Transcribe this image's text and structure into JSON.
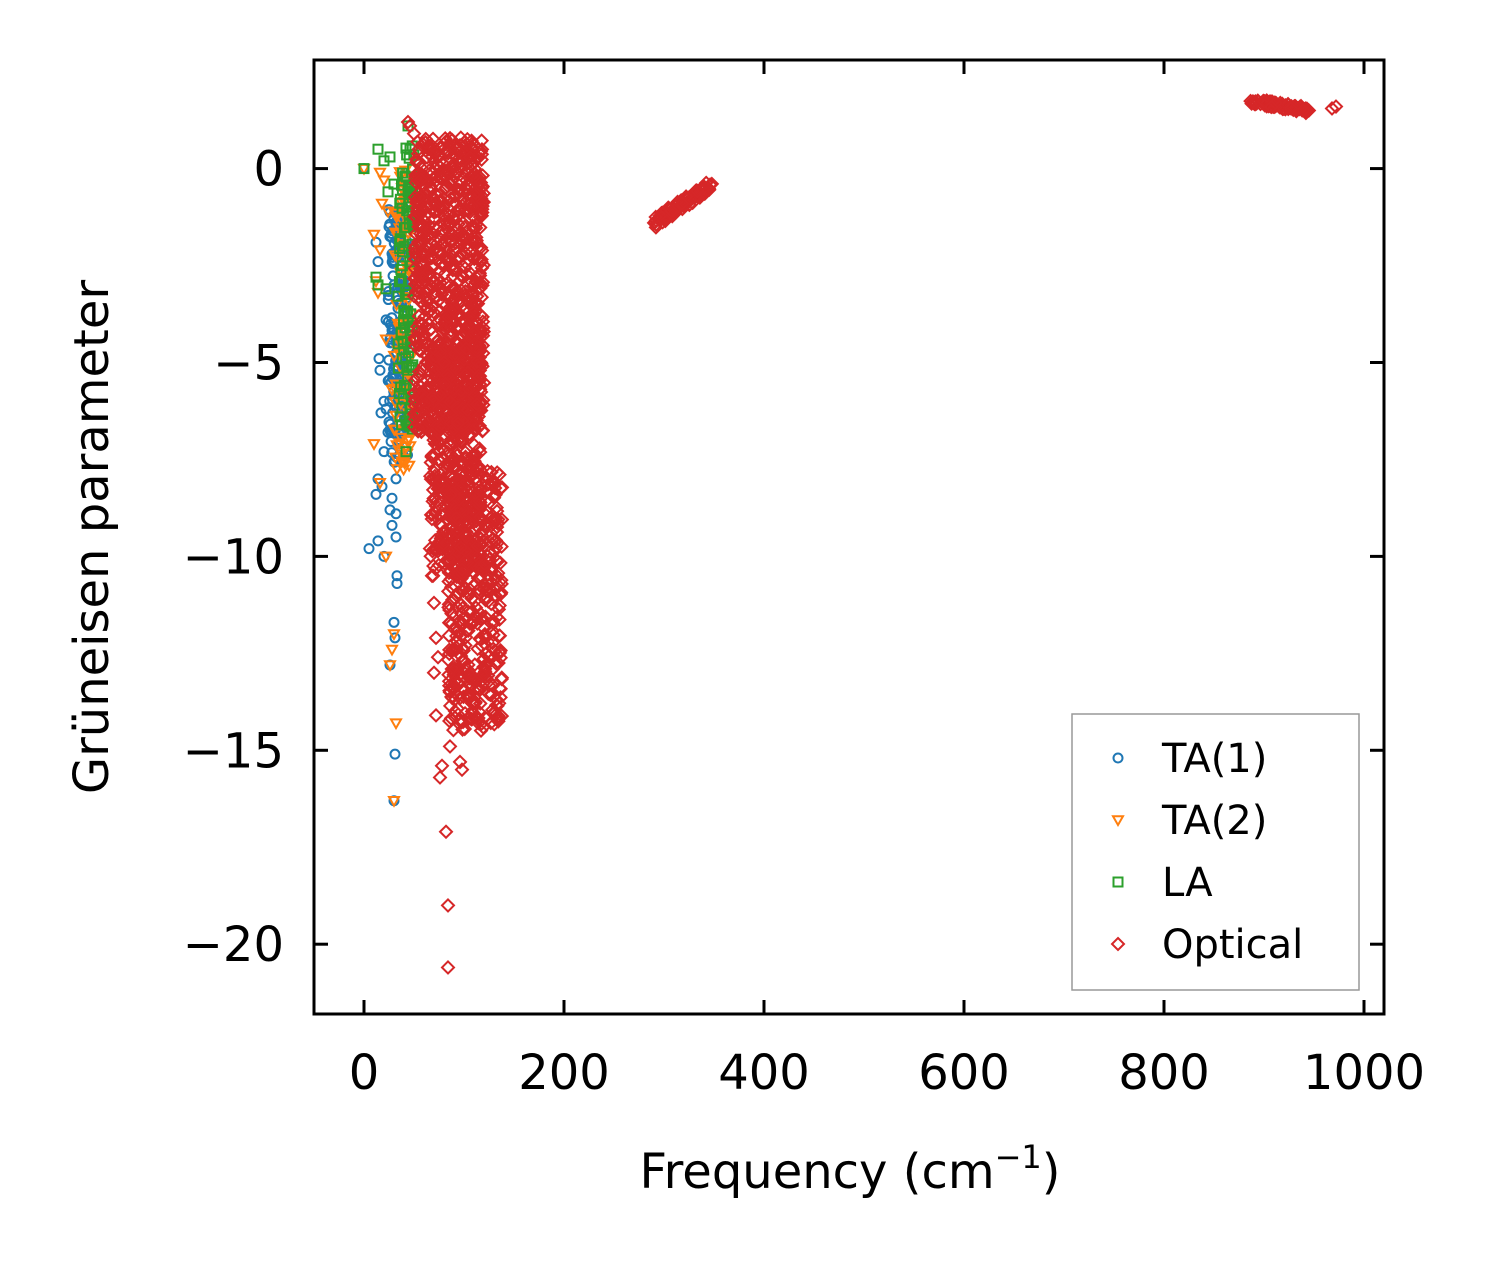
{
  "chart_data": {
    "type": "scatter",
    "title": "",
    "xlabel": "Frequency (cm",
    "xlabel_sup": "−1",
    "xlabel_close": ")",
    "ylabel": "Grüneisen parameter",
    "xlim": [
      -50,
      1020
    ],
    "ylim": [
      -21.8,
      2.8
    ],
    "xticks": [
      0,
      200,
      400,
      600,
      800,
      1000
    ],
    "xtick_labels": [
      "0",
      "200",
      "400",
      "600",
      "800",
      "1000"
    ],
    "yticks": [
      0,
      -5,
      -10,
      -15,
      -20
    ],
    "ytick_labels": [
      "0",
      "−5",
      "−10",
      "−15",
      "−20"
    ],
    "grid": false,
    "legend_position": "bottom-right",
    "series": [
      {
        "name": "TA(1)",
        "marker": "circle",
        "color": "#1f77b4",
        "points": [
          [
            0,
            0
          ],
          [
            12,
            -1.9
          ],
          [
            14,
            -2.4
          ],
          [
            15,
            -4.9
          ],
          [
            16,
            -5.2
          ],
          [
            17,
            -6.3
          ],
          [
            20,
            -6.0
          ],
          [
            22,
            -3.9
          ],
          [
            22,
            -6.2
          ],
          [
            24,
            -6.8
          ],
          [
            20,
            -7.3
          ],
          [
            12,
            -8.4
          ],
          [
            14,
            -8.0
          ],
          [
            18,
            -8.2
          ],
          [
            26,
            -8.8
          ],
          [
            28,
            -9.2
          ],
          [
            28,
            -8.5
          ],
          [
            32,
            -8.9
          ],
          [
            32,
            -9.5
          ],
          [
            5,
            -9.8
          ],
          [
            14,
            -9.6
          ],
          [
            20,
            -10.0
          ],
          [
            33,
            -10.5
          ],
          [
            33,
            -10.7
          ],
          [
            30,
            -11.7
          ],
          [
            31,
            -12.1
          ],
          [
            26,
            -12.8
          ],
          [
            31,
            -15.1
          ],
          [
            30,
            -16.3
          ],
          [
            25,
            -1.5
          ],
          [
            28,
            -2.2
          ],
          [
            30,
            -3.0
          ],
          [
            34,
            -3.6
          ],
          [
            26,
            -4.4
          ],
          [
            30,
            -5.3
          ],
          [
            36,
            -6.4
          ],
          [
            34,
            -7.1
          ],
          [
            38,
            -7.5
          ],
          [
            32,
            -8.0
          ]
        ],
        "band": {
          "x": [
            24,
            44
          ],
          "y": [
            -7.6,
            -1.0
          ],
          "count": 170
        }
      },
      {
        "name": "TA(2)",
        "marker": "triangle-down",
        "color": "#ff7f0e",
        "points": [
          [
            0,
            0
          ],
          [
            16,
            -0.1
          ],
          [
            20,
            -0.3
          ],
          [
            18,
            -0.9
          ],
          [
            24,
            -1.1
          ],
          [
            10,
            -1.7
          ],
          [
            16,
            -2.1
          ],
          [
            12,
            -2.9
          ],
          [
            14,
            -3.2
          ],
          [
            22,
            -4.4
          ],
          [
            28,
            -5.7
          ],
          [
            36,
            -6.6
          ],
          [
            10,
            -7.1
          ],
          [
            16,
            -8.1
          ],
          [
            22,
            -10.0
          ],
          [
            30,
            -12.0
          ],
          [
            28,
            -12.4
          ],
          [
            26,
            -12.8
          ],
          [
            32,
            -14.3
          ],
          [
            30,
            -16.3
          ],
          [
            38,
            -0.5
          ],
          [
            40,
            -1.2
          ],
          [
            44,
            -2.6
          ],
          [
            46,
            -4.9
          ]
        ],
        "band": {
          "x": [
            30,
            48
          ],
          "y": [
            -7.8,
            0.1
          ],
          "count": 90
        }
      },
      {
        "name": "LA",
        "marker": "square",
        "color": "#2ca02c",
        "points": [
          [
            0,
            0
          ],
          [
            14,
            0.5
          ],
          [
            20,
            0.2
          ],
          [
            24,
            -0.6
          ],
          [
            26,
            0.3
          ],
          [
            30,
            -0.4
          ],
          [
            12,
            -2.8
          ],
          [
            14,
            -3.0
          ],
          [
            22,
            -3.1
          ],
          [
            44,
            1.1
          ],
          [
            46,
            0.5
          ],
          [
            36,
            -6.4
          ],
          [
            44,
            -6.6
          ],
          [
            46,
            -6.2
          ],
          [
            42,
            -7.3
          ],
          [
            46,
            -4.6
          ],
          [
            40,
            -2.0
          ]
        ],
        "band": {
          "x": [
            34,
            50
          ],
          "y": [
            -6.8,
            0.6
          ],
          "count": 100
        }
      },
      {
        "name": "Optical",
        "marker": "diamond",
        "color": "#d62728",
        "points": [
          [
            44,
            1.2
          ],
          [
            46,
            1.1
          ],
          [
            50,
            0.9
          ],
          [
            82,
            0.7
          ],
          [
            90,
            0.6
          ],
          [
            96,
            0.6
          ],
          [
            112,
            -0.2
          ],
          [
            68,
            -7.4
          ],
          [
            70,
            -8.0
          ],
          [
            72,
            -8.7
          ],
          [
            66,
            -9.8
          ],
          [
            68,
            -10.5
          ],
          [
            70,
            -11.2
          ],
          [
            72,
            -12.1
          ],
          [
            74,
            -12.6
          ],
          [
            70,
            -13.0
          ],
          [
            72,
            -14.1
          ],
          [
            86,
            -14.9
          ],
          [
            78,
            -15.4
          ],
          [
            96,
            -15.3
          ],
          [
            98,
            -15.5
          ],
          [
            76,
            -15.7
          ],
          [
            82,
            -17.1
          ],
          [
            84,
            -19.0
          ],
          [
            84,
            -20.6
          ],
          [
            108,
            -14.2
          ],
          [
            104,
            -13.6
          ],
          [
            100,
            -12.9
          ]
        ],
        "bands": [
          {
            "x": [
              50,
              120
            ],
            "y": [
              -6.8,
              0.8
            ],
            "count": 900
          },
          {
            "x": [
              66,
              118
            ],
            "y": [
              -10.6,
              -4.5
            ],
            "count": 450
          },
          {
            "x": [
              84,
              138
            ],
            "y": [
              -14.5,
              -7.8
            ],
            "count": 420
          }
        ],
        "lines": [
          {
            "x": [
              290,
              348
            ],
            "y": [
              -1.4,
              -0.4
            ],
            "count": 90,
            "spread": 0.15
          },
          {
            "x": [
              886,
              945
            ],
            "y": [
              1.75,
              1.5
            ],
            "count": 90,
            "spread": 0.08
          }
        ],
        "extra_points": [
          [
            968,
            1.55
          ],
          [
            972,
            1.6
          ]
        ]
      }
    ]
  }
}
